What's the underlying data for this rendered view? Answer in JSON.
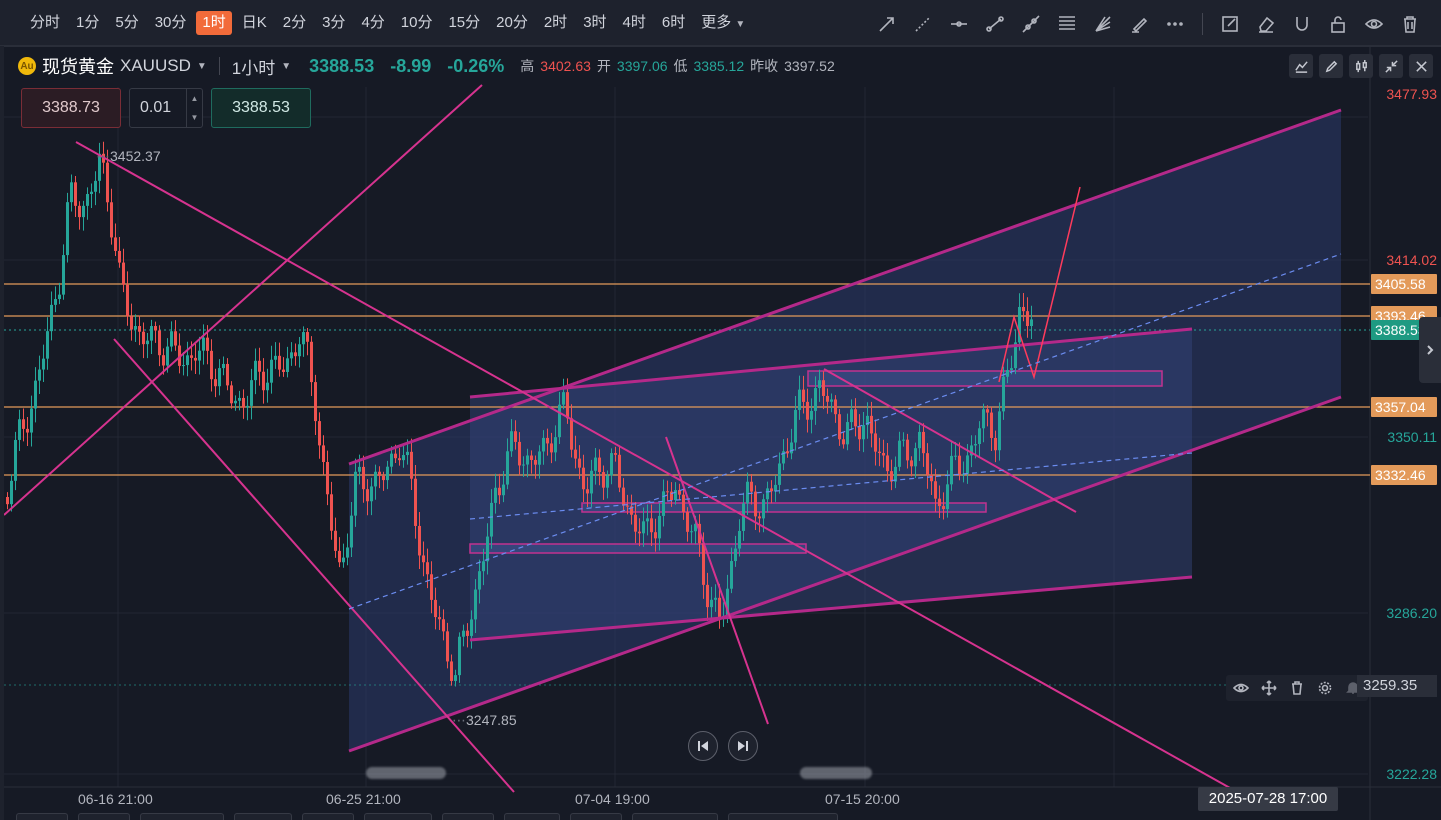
{
  "timeframes": [
    {
      "label": "分时",
      "active": false
    },
    {
      "label": "1分",
      "active": false
    },
    {
      "label": "5分",
      "active": false
    },
    {
      "label": "30分",
      "active": false
    },
    {
      "label": "1时",
      "active": true
    },
    {
      "label": "日K",
      "active": false
    },
    {
      "label": "2分",
      "active": false
    },
    {
      "label": "3分",
      "active": false
    },
    {
      "label": "4分",
      "active": false
    },
    {
      "label": "10分",
      "active": false
    },
    {
      "label": "15分",
      "active": false
    },
    {
      "label": "20分",
      "active": false
    },
    {
      "label": "2时",
      "active": false
    },
    {
      "label": "3时",
      "active": false
    },
    {
      "label": "4时",
      "active": false
    },
    {
      "label": "6时",
      "active": false
    }
  ],
  "more_label": "更多",
  "drawing_tools": [
    "trend-arrow-icon",
    "dashed-line-icon",
    "horizontal-line-icon",
    "ray-icon",
    "extended-line-icon",
    "fibonacci-icon",
    "fan-icon",
    "highlighter-icon",
    "more-dots-icon"
  ],
  "right_tools": [
    "edit-icon",
    "eraser-icon",
    "magnet-icon",
    "lock-icon",
    "eye-icon",
    "trash-icon"
  ],
  "symbol": {
    "name": "现货黄金",
    "code": "XAUUSD",
    "period": "1小时",
    "price": "3388.53",
    "change": "-8.99",
    "change_pct": "-0.26%",
    "high_label": "高",
    "high": "3402.63",
    "open_label": "开",
    "open": "3397.06",
    "low_label": "低",
    "low": "3385.12",
    "prev_label": "昨收",
    "prev": "3397.52"
  },
  "trade": {
    "sell": "3388.73",
    "qty": "0.01",
    "buy": "3388.53"
  },
  "window_tools": [
    "indicator-icon",
    "pencil-icon",
    "candles-icon",
    "collapse-icon",
    "close-icon"
  ],
  "y_axis": {
    "ticks": [
      {
        "v": "3477.93",
        "color": "red",
        "y": 47
      },
      {
        "v": "3414.02",
        "color": "red",
        "y": 213
      },
      {
        "v": "3350.11",
        "color": "green",
        "y": 390
      },
      {
        "v": "3286.20",
        "color": "green",
        "y": 566
      },
      {
        "v": "3222.28",
        "color": "green",
        "y": 727
      }
    ],
    "badges": [
      {
        "v": "3405.58",
        "y": 237,
        "kind": "orange"
      },
      {
        "v": "3393.46",
        "y": 269,
        "kind": "orange"
      },
      {
        "v": "3388.53",
        "y": 283,
        "kind": "teal"
      },
      {
        "v": "3357.04",
        "y": 360,
        "kind": "orange"
      },
      {
        "v": "3332.46",
        "y": 428,
        "kind": "orange"
      }
    ]
  },
  "x_axis": {
    "ticks": [
      {
        "label": "06-16 21:00",
        "x": 74
      },
      {
        "label": "06-25 21:00",
        "x": 322
      },
      {
        "label": "07-04 19:00",
        "x": 571
      },
      {
        "label": "07-15 20:00",
        "x": 821
      }
    ],
    "crosshair_label": "2025-07-28 17:00"
  },
  "annotations": {
    "high": "3452.37",
    "low": "3247.85"
  },
  "line_tool_price": "3259.35",
  "colors": {
    "up": "#26a69a",
    "down": "#ef5350",
    "accent": "#f26b3a",
    "channel": "#c2328f",
    "level": "#e39a5a"
  }
}
